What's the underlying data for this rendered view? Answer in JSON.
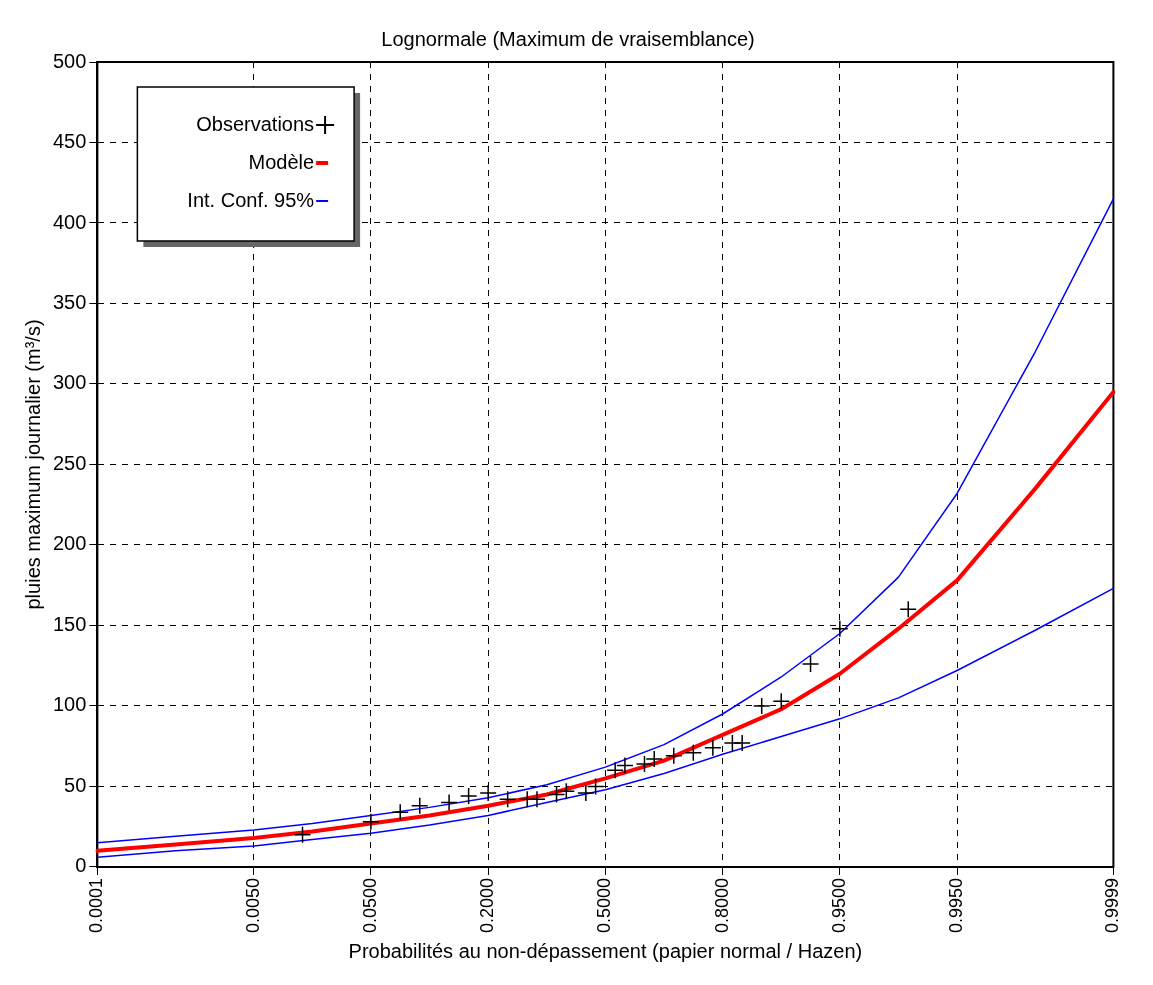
{
  "chart_data": {
    "type": "scatter",
    "title": "Lognormale (Maximum de vraisemblance)",
    "xlabel": "Probabilités au non-dépassement (papier normal / Hazen)",
    "ylabel": "pluies maximum journalier (m³/s)",
    "categories": [
      "0.0001",
      null,
      null,
      null,
      null,
      null,
      null,
      null,
      null,
      null,
      null,
      null,
      null,
      null,
      null,
      null,
      "0.0050",
      null,
      null,
      null,
      null,
      null,
      null,
      null,
      null,
      null,
      null,
      null,
      "0.0500",
      null,
      null,
      null,
      null,
      null,
      null,
      null,
      null,
      null,
      null,
      null,
      "0.2000",
      null,
      null,
      null,
      null,
      null,
      null,
      null,
      null,
      null,
      null,
      null,
      "0.5000",
      null,
      null,
      null,
      null,
      null,
      null,
      null,
      null,
      null,
      null,
      null,
      "0.8000",
      null,
      null,
      null,
      null,
      null,
      null,
      null,
      null,
      null,
      null,
      null,
      "0.9500",
      null,
      null,
      null,
      null,
      null,
      null,
      null,
      null,
      null,
      null,
      null,
      "0.9950",
      null,
      null,
      null,
      null,
      null,
      null,
      null,
      null,
      null,
      null,
      null,
      null,
      null,
      null,
      null,
      "0.9999"
    ],
    "ylim": [
      0,
      500
    ],
    "yticks": [
      0,
      50,
      100,
      150,
      200,
      250,
      300,
      350,
      400,
      450,
      500
    ],
    "grid": true,
    "legend": "top left",
    "series": [
      {
        "name": "Observations",
        "marker": "cross",
        "color": "#000000",
        "values": [
          null,
          null,
          null,
          null,
          null,
          null,
          null,
          null,
          null,
          null,
          null,
          null,
          null,
          null,
          null,
          null,
          null,
          null,
          null,
          null,
          null,
          20,
          null,
          null,
          null,
          null,
          null,
          null,
          28,
          null,
          null,
          34,
          null,
          38,
          null,
          null,
          40,
          null,
          44,
          null,
          46,
          null,
          42,
          null,
          42,
          42,
          null,
          45,
          47,
          null,
          46,
          50,
          null,
          60,
          63,
          null,
          64,
          67,
          null,
          69,
          null,
          71,
          null,
          74,
          null,
          77,
          77,
          null,
          100,
          null,
          103,
          null,
          null,
          126,
          null,
          null,
          148,
          null,
          null,
          null,
          null,
          null,
          null,
          160,
          null,
          null,
          null,
          null,
          null,
          null,
          null,
          null,
          null,
          null,
          null,
          null,
          null,
          null,
          null,
          null,
          null,
          null,
          null,
          null,
          null
        ]
      },
      {
        "name": "Modèle",
        "type": "line",
        "marker": "none",
        "color": "#ff0000",
        "values": [
          10,
          null,
          null,
          null,
          null,
          null,
          null,
          null,
          14,
          null,
          null,
          null,
          null,
          null,
          null,
          null,
          18,
          null,
          null,
          null,
          null,
          null,
          22,
          null,
          null,
          null,
          null,
          null,
          27,
          null,
          null,
          null,
          null,
          null,
          32,
          null,
          null,
          null,
          null,
          null,
          38,
          null,
          null,
          null,
          null,
          null,
          45,
          null,
          null,
          null,
          null,
          null,
          55,
          null,
          null,
          null,
          null,
          null,
          66,
          null,
          null,
          null,
          null,
          null,
          82,
          null,
          null,
          null,
          null,
          null,
          98,
          null,
          null,
          null,
          null,
          null,
          120,
          null,
          null,
          null,
          null,
          null,
          148,
          null,
          null,
          null,
          null,
          null,
          178,
          null,
          null,
          null,
          null,
          null,
          null,
          null,
          235,
          null,
          null,
          null,
          null,
          null,
          null,
          null,
          295
        ]
      },
      {
        "name": "Int. Conf. 95%",
        "type": "line",
        "marker": "none",
        "color": "#0000ff",
        "values": [
          15,
          null,
          null,
          null,
          null,
          null,
          null,
          null,
          19,
          null,
          null,
          null,
          null,
          null,
          null,
          null,
          23,
          null,
          null,
          null,
          null,
          null,
          27,
          null,
          null,
          null,
          null,
          null,
          32,
          null,
          null,
          null,
          null,
          null,
          37,
          null,
          null,
          null,
          null,
          null,
          43,
          null,
          null,
          null,
          null,
          null,
          51,
          null,
          null,
          null,
          null,
          null,
          62,
          null,
          null,
          null,
          null,
          null,
          76,
          null,
          null,
          null,
          null,
          null,
          95,
          null,
          null,
          null,
          null,
          null,
          118,
          null,
          null,
          null,
          null,
          null,
          145,
          null,
          null,
          null,
          null,
          null,
          180,
          null,
          null,
          null,
          null,
          null,
          232,
          null,
          null,
          null,
          null,
          null,
          null,
          null,
          320,
          null,
          null,
          null,
          null,
          null,
          null,
          null,
          415
        ]
      },
      {
        "type": "line",
        "marker": "none",
        "color": "#0000ff",
        "values": [
          6,
          null,
          null,
          null,
          null,
          null,
          null,
          null,
          10,
          null,
          null,
          null,
          null,
          null,
          null,
          null,
          13,
          null,
          null,
          null,
          null,
          null,
          17,
          null,
          null,
          null,
          null,
          null,
          21,
          null,
          null,
          null,
          null,
          null,
          26,
          null,
          null,
          null,
          null,
          null,
          32,
          null,
          null,
          null,
          null,
          null,
          40,
          null,
          null,
          null,
          null,
          null,
          48,
          null,
          null,
          null,
          null,
          null,
          58,
          null,
          null,
          null,
          null,
          null,
          70,
          null,
          null,
          null,
          null,
          null,
          81,
          null,
          null,
          null,
          null,
          null,
          92,
          null,
          null,
          null,
          null,
          null,
          105,
          null,
          null,
          null,
          null,
          null,
          122,
          null,
          null,
          null,
          null,
          null,
          null,
          null,
          147,
          null,
          null,
          null,
          null,
          null,
          null,
          null,
          173
        ]
      }
    ]
  }
}
